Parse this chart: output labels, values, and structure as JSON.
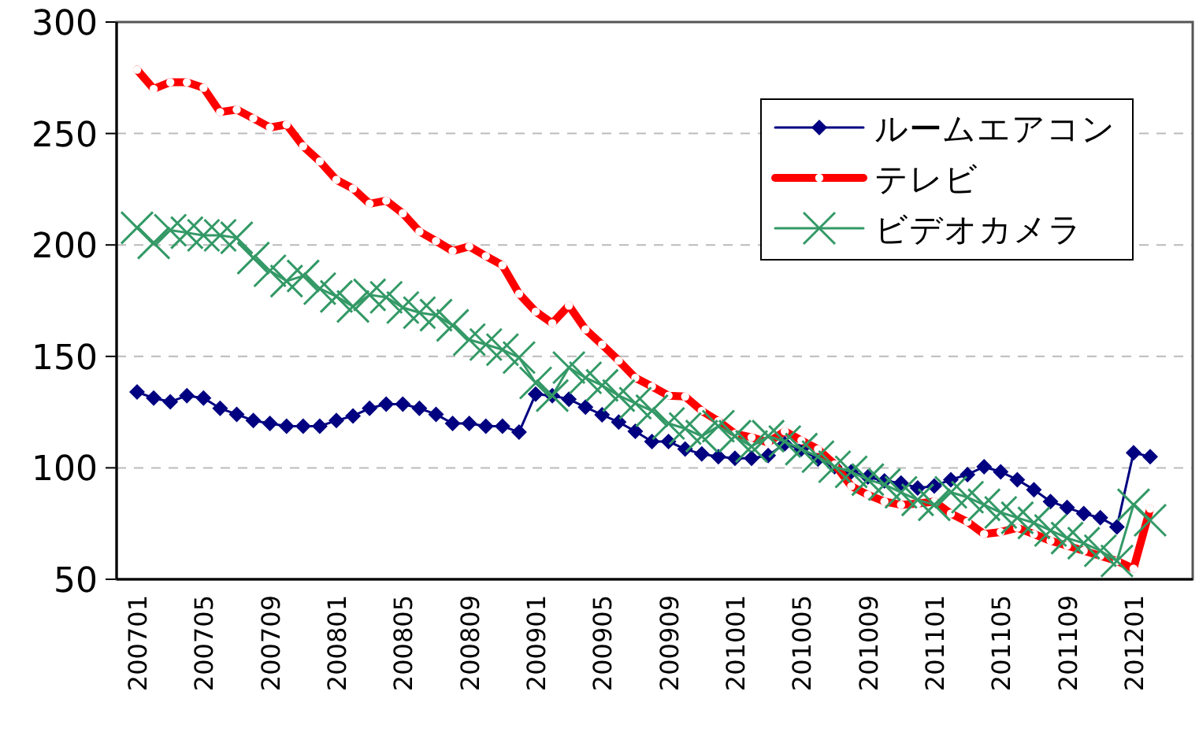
{
  "chart_data": {
    "type": "line",
    "categories": [
      "200701",
      null,
      null,
      null,
      "200705",
      null,
      null,
      null,
      "200709",
      null,
      null,
      null,
      "200801",
      null,
      null,
      null,
      "200805",
      null,
      null,
      null,
      "200809",
      null,
      null,
      null,
      "200901",
      null,
      null,
      null,
      "200905",
      null,
      null,
      null,
      "200909",
      null,
      null,
      null,
      "201001",
      null,
      null,
      null,
      "201005",
      null,
      null,
      null,
      "201009",
      null,
      null,
      null,
      "201101",
      null,
      null,
      null,
      "201105",
      null,
      null,
      null,
      "201109",
      null,
      null,
      null,
      "201201",
      null
    ],
    "ylim": [
      50,
      300
    ],
    "yticks": [
      50,
      100,
      150,
      200,
      250,
      300
    ],
    "grid": "y",
    "legend": "top right",
    "series": [
      {
        "name": "ルームエアコン",
        "color": "#000080",
        "marker": "diamond",
        "values": [
          134.0,
          131.3,
          129.6,
          132.4,
          131.3,
          126.7,
          124.0,
          121.2,
          119.9,
          118.7,
          118.7,
          118.7,
          121.2,
          123.3,
          126.7,
          128.6,
          128.6,
          126.7,
          124.0,
          119.9,
          119.9,
          118.7,
          118.7,
          116.0,
          133.1,
          132.4,
          130.8,
          127.2,
          123.8,
          120.5,
          116.4,
          111.8,
          111.8,
          108.4,
          106.2,
          105.0,
          104.3,
          104.3,
          105.5,
          110.8,
          108.4,
          103.9,
          100.5,
          98.2,
          95.9,
          94.1,
          93.2,
          91.0,
          91.8,
          94.7,
          97.0,
          100.5,
          98.2,
          94.7,
          90.2,
          84.9,
          82.2,
          79.5,
          77.6,
          73.5,
          106.8,
          105.0
        ]
      },
      {
        "name": "テレビ",
        "color": "#ff0000",
        "marker": "circle",
        "values": [
          278.6,
          270.0,
          273.0,
          273.0,
          270.5,
          259.6,
          260.7,
          256.8,
          252.7,
          254.0,
          244.3,
          237.5,
          229.2,
          225.3,
          218.5,
          219.9,
          214.2,
          206.0,
          201.8,
          197.3,
          199.3,
          195.0,
          190.9,
          178.1,
          170.1,
          164.9,
          172.8,
          162.1,
          155.3,
          148.1,
          140.4,
          136.5,
          132.4,
          132.0,
          125.6,
          121.0,
          115.3,
          113.7,
          111.4,
          116.4,
          112.3,
          108.4,
          101.6,
          91.8,
          87.9,
          84.9,
          83.4,
          84.0,
          84.9,
          79.5,
          75.8,
          70.3,
          71.2,
          73.1,
          70.3,
          67.3,
          65.1,
          62.8,
          60.5,
          58.2,
          54.8,
          81.7
        ]
      },
      {
        "name": "ビデオカメラ",
        "color": "#339966",
        "marker": "cross",
        "values": [
          207.7,
          200.9,
          206.6,
          205.5,
          204.3,
          204.3,
          203.2,
          194.1,
          188.4,
          183.8,
          186.1,
          180.4,
          176.9,
          172.4,
          177.6,
          176.5,
          171.9,
          169.6,
          168.5,
          163.9,
          157.5,
          155.3,
          153.0,
          149.5,
          138.1,
          132.4,
          145.0,
          140.4,
          137.0,
          132.4,
          129.0,
          125.6,
          119.9,
          117.6,
          114.2,
          118.7,
          114.2,
          109.6,
          114.2,
          111.8,
          108.4,
          105.0,
          100.5,
          98.2,
          94.7,
          92.5,
          89.0,
          85.6,
          83.4,
          89.0,
          86.8,
          83.4,
          80.0,
          77.6,
          75.3,
          71.9,
          68.5,
          66.2,
          62.8,
          58.2,
          83.4,
          76.5
        ]
      }
    ]
  }
}
